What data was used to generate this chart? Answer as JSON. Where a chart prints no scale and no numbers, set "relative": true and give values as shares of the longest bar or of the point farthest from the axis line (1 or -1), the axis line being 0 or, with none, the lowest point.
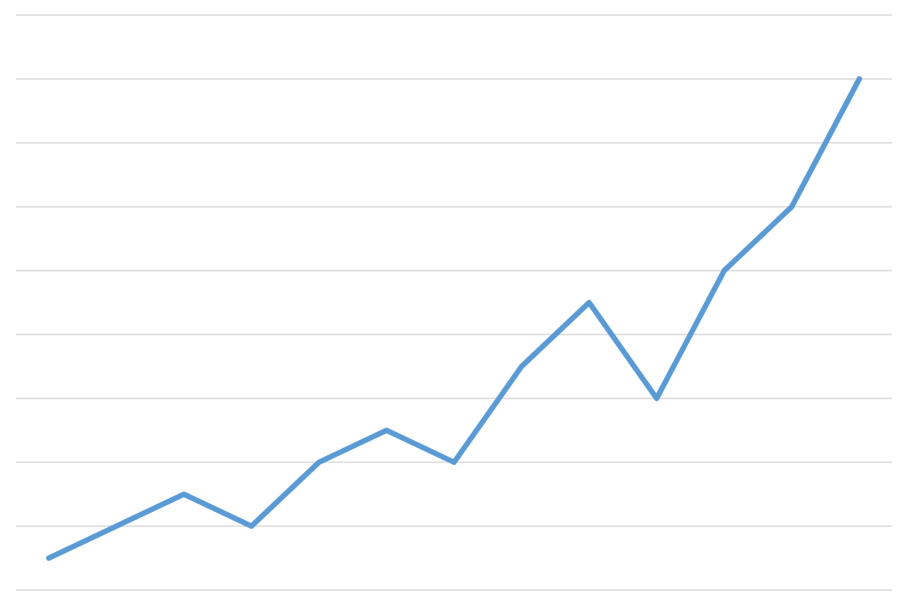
{
  "chart_data": {
    "type": "line",
    "relative": true,
    "grid": "y",
    "marker": "none",
    "line_style": "solid",
    "categories": [
      null,
      null,
      null,
      null,
      null,
      null,
      null,
      null,
      null,
      null,
      null,
      null,
      null
    ],
    "series": [
      {
        "color": "#5b9bd5",
        "values": [
          0.0625,
          0.125,
          0.1875,
          0.125,
          0.25,
          0.3125,
          0.25,
          0.4375,
          0.5625,
          0.375,
          0.625,
          0.75,
          1
        ]
      }
    ]
  }
}
